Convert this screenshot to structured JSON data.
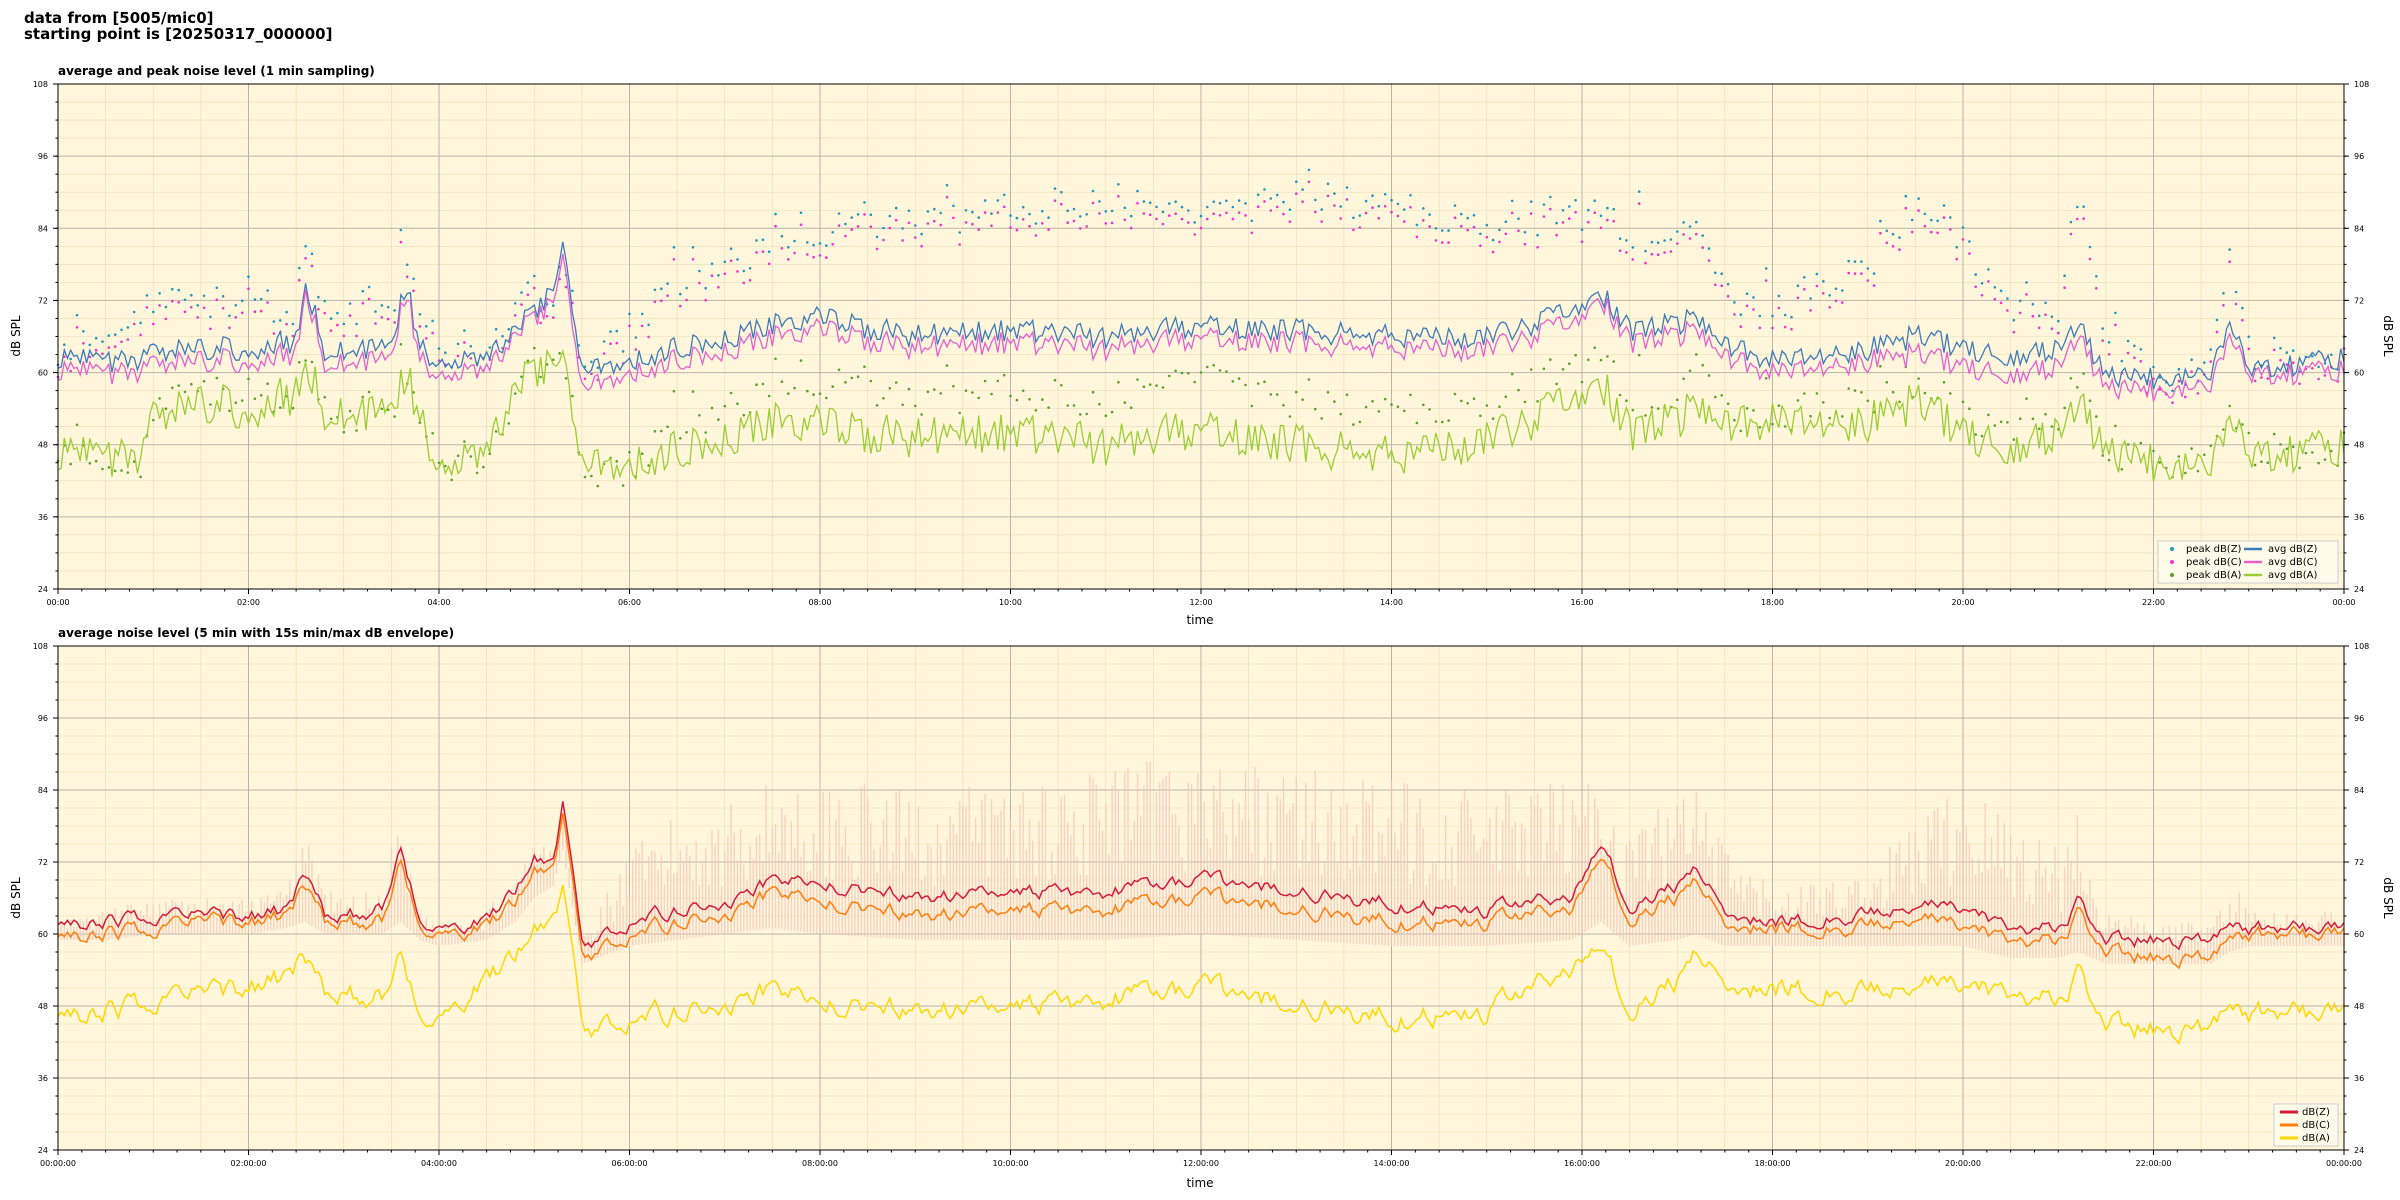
{
  "header": {
    "line1": "data from [5005/mic0]",
    "line2": "starting point is [20250317_000000]"
  },
  "colors": {
    "plot_bg": "#fff6dc",
    "peak_z": "#2596be",
    "peak_c": "#ee33cc",
    "peak_a": "#5aa02c",
    "avg_z": "#3d7ab8",
    "avg_c": "#e45fcf",
    "avg_a": "#9acd32",
    "env_fill": "#f4c6b8",
    "z": "#d21c3a",
    "c": "#ff7f0e",
    "a": "#ffd700"
  },
  "chart_data": [
    {
      "type": "line",
      "title": "average and peak noise level (1 min sampling)",
      "xlabel": "time",
      "ylabel": "dB SPL",
      "ylabel_right": "dB SPL",
      "ylim": [
        24,
        108
      ],
      "y_ticks": [
        24,
        36,
        48,
        60,
        72,
        84,
        96,
        108
      ],
      "x_range_hours": [
        0,
        24
      ],
      "x_ticks_hours": [
        0,
        2,
        4,
        6,
        8,
        10,
        12,
        14,
        16,
        18,
        20,
        22,
        24
      ],
      "x_tick_labels": [
        "00:00",
        "02:00",
        "04:00",
        "06:00",
        "08:00",
        "10:00",
        "12:00",
        "14:00",
        "16:00",
        "18:00",
        "20:00",
        "22:00",
        "00:00"
      ],
      "grid": true,
      "legend_position": "lower-right",
      "legend": [
        "peak dB(Z)",
        "peak dB(C)",
        "peak dB(A)",
        "avg dB(Z)",
        "avg dB(C)",
        "avg dB(A)"
      ],
      "key_hours": [
        0,
        0.9,
        1.0,
        1.5,
        2.0,
        2.4,
        2.5,
        2.6,
        2.8,
        3.0,
        3.5,
        3.65,
        3.8,
        4.0,
        4.5,
        4.8,
        5.0,
        5.2,
        5.3,
        5.5,
        6.0,
        6.5,
        7.0,
        7.5,
        8.0,
        9.0,
        10.0,
        11.0,
        12.0,
        13.0,
        14.0,
        15.0,
        15.9,
        16.2,
        16.5,
        17.0,
        17.2,
        17.5,
        18.0,
        19.0,
        19.5,
        20.0,
        20.5,
        21.0,
        21.2,
        21.5,
        22.0,
        22.5,
        22.6,
        22.8,
        23.0,
        24.0
      ],
      "series": [
        {
          "name": "avg dB(Z)",
          "values": [
            62,
            62,
            63,
            64,
            64,
            65,
            65,
            75,
            64,
            63,
            64,
            75,
            64,
            62,
            62,
            67,
            70,
            74,
            82,
            60,
            62,
            64,
            65,
            68,
            69,
            66,
            67,
            66,
            68,
            67,
            66,
            66,
            70,
            73,
            67,
            68,
            70,
            65,
            62,
            64,
            66,
            64,
            63,
            64,
            68,
            59,
            59,
            60,
            60,
            68,
            61,
            62
          ]
        },
        {
          "name": "avg dB(C)",
          "values": [
            60,
            60,
            61,
            62,
            62,
            63,
            63,
            74,
            62,
            61,
            62,
            74,
            62,
            60,
            60,
            66,
            69,
            72,
            80,
            57,
            60,
            62,
            63,
            66,
            67,
            64,
            65,
            64,
            66,
            65,
            64,
            64,
            68,
            72,
            65,
            66,
            68,
            63,
            60,
            62,
            63,
            61,
            60,
            61,
            66,
            57,
            57,
            58,
            58,
            66,
            60,
            60
          ]
        },
        {
          "name": "avg dB(A)",
          "values": [
            46,
            46,
            52,
            55,
            54,
            56,
            56,
            62,
            54,
            52,
            53,
            60,
            52,
            45,
            46,
            57,
            60,
            62,
            64,
            44,
            45,
            47,
            48,
            52,
            51,
            49,
            50,
            48,
            51,
            48,
            46,
            49,
            55,
            58,
            50,
            52,
            56,
            52,
            52,
            52,
            55,
            50,
            48,
            50,
            55,
            46,
            45,
            45,
            45,
            52,
            47,
            47
          ]
        },
        {
          "name": "peak dB(Z)",
          "values": [
            64,
            74,
            74,
            74,
            75,
            74,
            74,
            85,
            74,
            74,
            74,
            84,
            74,
            66,
            66,
            75,
            76,
            75,
            85,
            64,
            70,
            76,
            80,
            86,
            87,
            88,
            90,
            92,
            88,
            93,
            90,
            88,
            88,
            90,
            85,
            88,
            86,
            76,
            74,
            80,
            92,
            85,
            74,
            74,
            92,
            70,
            62,
            63,
            64,
            84,
            66,
            66
          ]
        },
        {
          "name": "peak dB(C)",
          "values": [
            62,
            72,
            72,
            72,
            73,
            72,
            72,
            83,
            72,
            72,
            72,
            82,
            72,
            64,
            64,
            73,
            74,
            73,
            83,
            62,
            68,
            74,
            78,
            84,
            85,
            86,
            88,
            90,
            86,
            91,
            88,
            86,
            86,
            88,
            83,
            86,
            84,
            74,
            72,
            78,
            90,
            83,
            72,
            72,
            90,
            68,
            60,
            61,
            62,
            82,
            64,
            64
          ]
        },
        {
          "name": "peak dB(A)",
          "values": [
            48,
            48,
            56,
            60,
            58,
            60,
            60,
            66,
            58,
            56,
            57,
            64,
            56,
            47,
            48,
            60,
            64,
            66,
            68,
            46,
            47,
            52,
            56,
            62,
            62,
            58,
            60,
            58,
            62,
            58,
            56,
            58,
            62,
            66,
            58,
            60,
            64,
            56,
            56,
            58,
            62,
            56,
            54,
            56,
            62,
            50,
            48,
            48,
            48,
            58,
            50,
            50
          ]
        }
      ]
    },
    {
      "type": "line",
      "title": "average noise level (5 min with 15s min/max dB envelope)",
      "xlabel": "time",
      "ylabel": "dB SPL",
      "ylabel_right": "dB SPL",
      "ylim": [
        24,
        108
      ],
      "y_ticks": [
        24,
        36,
        48,
        60,
        72,
        84,
        96,
        108
      ],
      "x_range_hours": [
        0,
        24
      ],
      "x_ticks_hours": [
        0,
        2,
        4,
        6,
        8,
        10,
        12,
        14,
        16,
        18,
        20,
        22,
        24
      ],
      "x_tick_labels": [
        "00:00:00",
        "02:00:00",
        "04:00:00",
        "06:00:00",
        "08:00:00",
        "10:00:00",
        "12:00:00",
        "14:00:00",
        "16:00:00",
        "18:00:00",
        "20:00:00",
        "22:00:00",
        "00:00:00"
      ],
      "grid": true,
      "legend_position": "lower-right",
      "legend": [
        "dB(Z)",
        "dB(C)",
        "dB(A)"
      ],
      "key_hours": [
        0,
        0.5,
        1.0,
        1.5,
        2.0,
        2.4,
        2.6,
        2.8,
        3.0,
        3.4,
        3.6,
        3.8,
        4.0,
        4.5,
        4.8,
        5.0,
        5.2,
        5.3,
        5.5,
        6.0,
        6.5,
        7.0,
        7.5,
        8.0,
        9.0,
        10.0,
        11.0,
        12.0,
        13.0,
        14.0,
        15.0,
        15.9,
        16.2,
        16.5,
        17.0,
        17.2,
        17.5,
        18.0,
        19.0,
        19.5,
        20.0,
        20.5,
        21.0,
        21.2,
        21.5,
        22.0,
        22.5,
        22.6,
        22.8,
        23.0,
        24.0
      ],
      "series": [
        {
          "name": "dB(Z)",
          "values": [
            62,
            62,
            63,
            63,
            63,
            64,
            70,
            63,
            63,
            64,
            75,
            62,
            61,
            62,
            67,
            72,
            73,
            82,
            58,
            62,
            64,
            65,
            69,
            68,
            66,
            67,
            67,
            69,
            67,
            65,
            64,
            66,
            75,
            65,
            68,
            71,
            64,
            62,
            63,
            65,
            64,
            61,
            61,
            65,
            59,
            59,
            59,
            59,
            63,
            61,
            61
          ]
        },
        {
          "name": "dB(C)",
          "values": [
            60,
            60,
            61,
            62,
            62,
            63,
            68,
            62,
            62,
            62,
            73,
            61,
            60,
            61,
            65,
            70,
            72,
            80,
            56,
            60,
            62,
            63,
            67,
            65,
            63,
            64,
            64,
            66,
            64,
            62,
            62,
            64,
            73,
            63,
            66,
            69,
            62,
            61,
            61,
            63,
            61,
            59,
            59,
            63,
            57,
            56,
            56,
            56,
            61,
            60,
            60
          ]
        },
        {
          "name": "dB(A)",
          "values": [
            47,
            47,
            49,
            50,
            51,
            53,
            56,
            50,
            50,
            49,
            58,
            46,
            46,
            52,
            56,
            60,
            64,
            68,
            44,
            46,
            47,
            48,
            51,
            48,
            47,
            48,
            49,
            51,
            48,
            46,
            47,
            54,
            58,
            48,
            52,
            57,
            52,
            51,
            50,
            52,
            51,
            50,
            49,
            53,
            45,
            44,
            44,
            45,
            50,
            47,
            47
          ]
        },
        {
          "name": "envelope max",
          "values": [
            62,
            64,
            66,
            66,
            66,
            68,
            80,
            68,
            66,
            68,
            82,
            64,
            62,
            64,
            70,
            75,
            76,
            82,
            60,
            74,
            80,
            82,
            86,
            86,
            84,
            86,
            88,
            90,
            88,
            86,
            84,
            86,
            86,
            78,
            84,
            86,
            74,
            68,
            70,
            80,
            86,
            80,
            76,
            82,
            64,
            62,
            62,
            62,
            70,
            64,
            64
          ]
        },
        {
          "name": "envelope min",
          "values": [
            59,
            59,
            60,
            60,
            60,
            61,
            62,
            60,
            60,
            60,
            62,
            59,
            58,
            59,
            62,
            66,
            68,
            74,
            55,
            58,
            59,
            60,
            61,
            60,
            59,
            59,
            59,
            60,
            59,
            58,
            58,
            59,
            62,
            58,
            59,
            60,
            58,
            58,
            58,
            58,
            58,
            56,
            56,
            57,
            55,
            55,
            55,
            55,
            57,
            58,
            58
          ]
        }
      ]
    }
  ]
}
